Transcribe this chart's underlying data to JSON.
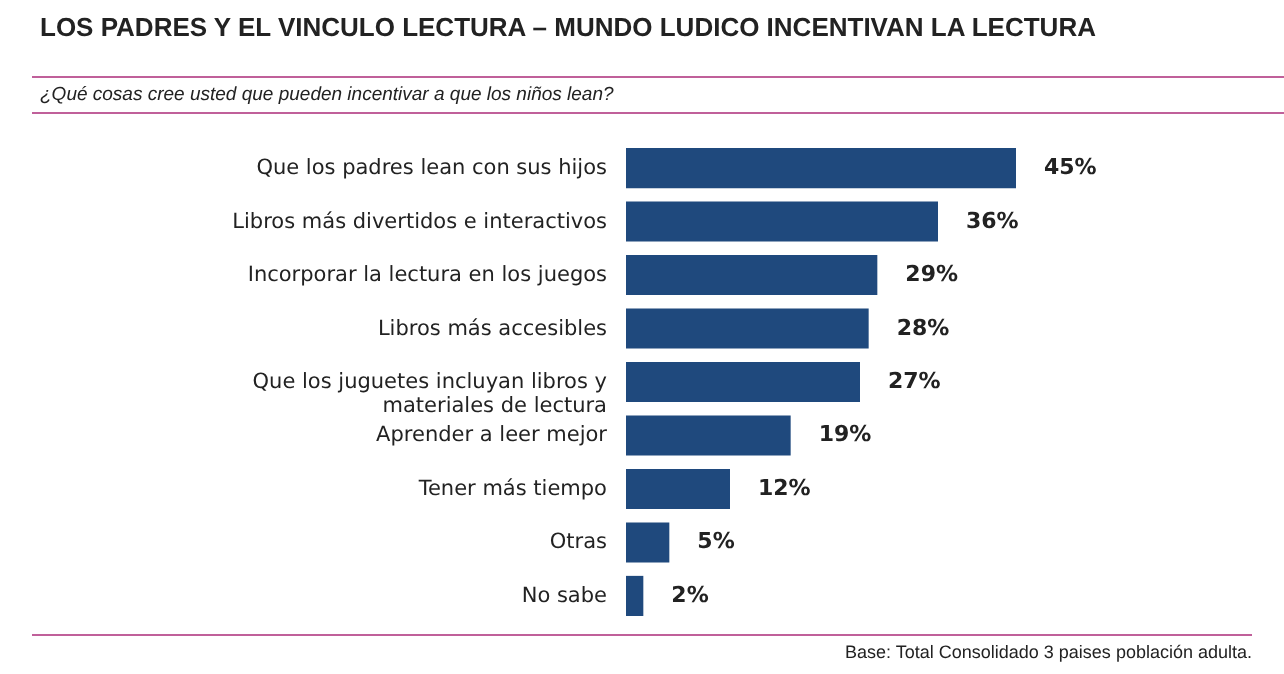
{
  "chart_data": {
    "type": "bar",
    "orientation": "horizontal",
    "title": "LOS PADRES Y EL VINCULO LECTURA – MUNDO LUDICO INCENTIVAN LA LECTURA",
    "subtitle": "¿Qué cosas cree usted que pueden incentivar a que los niños lean?",
    "categories": [
      "Que los padres lean con sus hijos",
      "Libros más divertidos e interactivos",
      "Incorporar la lectura en los juegos",
      "Libros más accesibles",
      "Que los juguetes incluyan libros y\nmateriales de lectura",
      "Aprender a leer mejor",
      "Tener más tiempo",
      "Otras",
      "No sabe"
    ],
    "values": [
      45,
      36,
      29,
      28,
      27,
      19,
      12,
      5,
      2
    ],
    "value_labels": [
      "45%",
      "36%",
      "29%",
      "28%",
      "27%",
      "19%",
      "12%",
      "5%",
      "2%"
    ],
    "color": "#1f497d",
    "annotations": [
      "Base: Total Consolidado 3 paises población adulta."
    ]
  }
}
